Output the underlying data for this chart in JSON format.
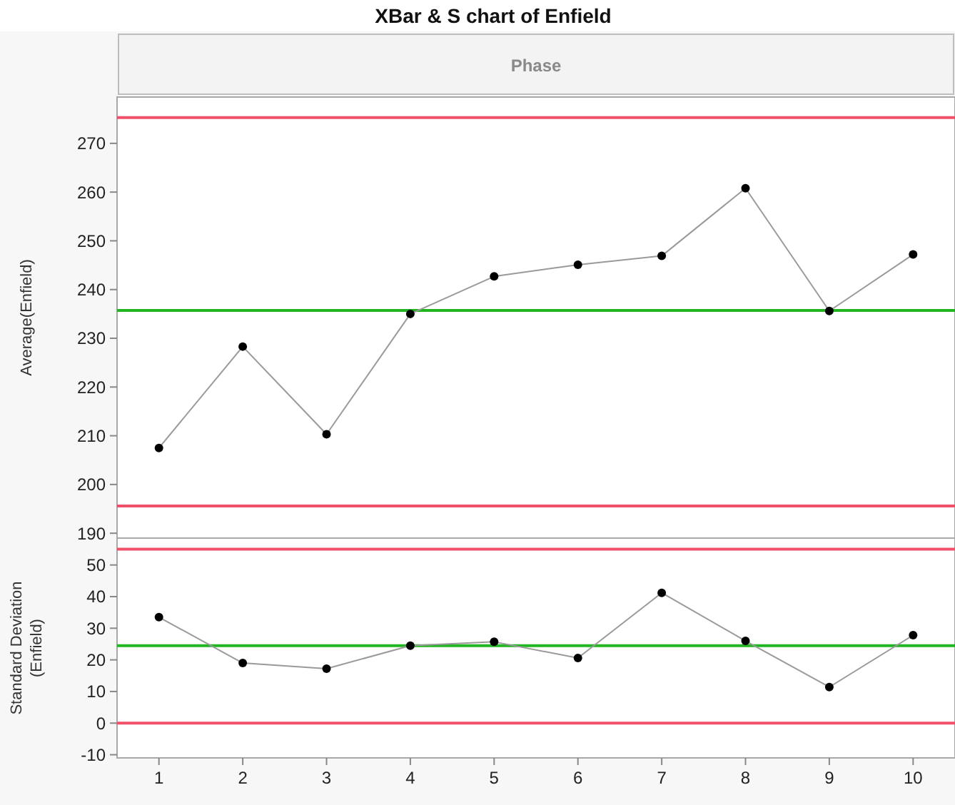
{
  "chart_data": [
    {
      "type": "line",
      "title": "XBar & S chart of Enfield",
      "annotations": [
        "Phase"
      ],
      "ylabel": "Average(Enfield)",
      "series": [
        {
          "color": "#000000",
          "values": [
            207.5,
            228.3,
            210.3,
            235,
            242.7,
            245.1,
            246.9,
            260.8,
            235.6,
            247.2
          ]
        }
      ],
      "ylim": [
        189,
        279.5
      ],
      "yticks": [
        190,
        200,
        210,
        220,
        230,
        240,
        250,
        260,
        270
      ],
      "tick_labels": "y",
      "marker": "circle",
      "line_style": "solid",
      "grid": false,
      "ref_lines": [
        {
          "axis": "y",
          "value": 275.3,
          "color": "#f0506a"
        },
        {
          "axis": "y",
          "value": 235.7,
          "color": "#21b521"
        },
        {
          "axis": "y",
          "value": 195.6,
          "color": "#f0506a"
        }
      ]
    },
    {
      "type": "line",
      "ylabel": "Standard Deviation\n(Enfield)",
      "categories": [
        "1",
        "2",
        "3",
        "4",
        "5",
        "6",
        "7",
        "8",
        "9",
        "10"
      ],
      "series": [
        {
          "color": "#000000",
          "values": [
            33.5,
            19,
            17.2,
            24.5,
            25.7,
            20.6,
            41.2,
            26,
            11.4,
            27.8
          ]
        }
      ],
      "ylim": [
        -11,
        58.5
      ],
      "yticks": [
        -10,
        0,
        10,
        20,
        30,
        40,
        50
      ],
      "marker": "circle",
      "line_style": "solid",
      "grid": false,
      "ref_lines": [
        {
          "axis": "y",
          "value": 55,
          "color": "#f0506a"
        },
        {
          "axis": "y",
          "value": 24.5,
          "color": "#21b521"
        },
        {
          "axis": "y",
          "value": 0,
          "color": "#f0506a"
        }
      ]
    }
  ]
}
